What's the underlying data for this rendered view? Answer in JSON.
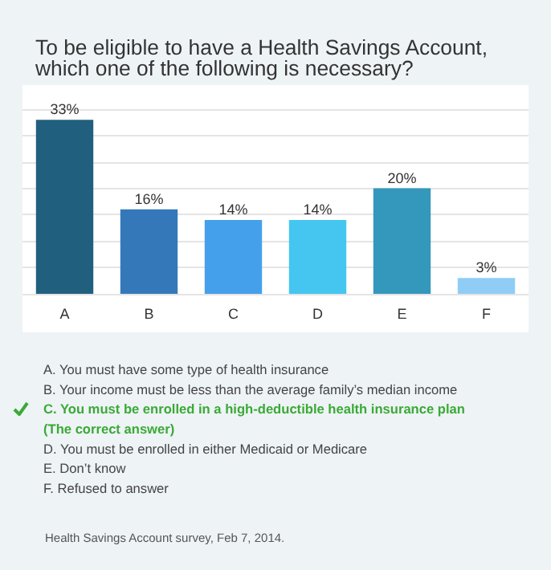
{
  "chart_data": {
    "type": "bar",
    "title": "To be eligible to have a Health Savings Account,\nwhich one of the following is necessary?",
    "categories": [
      "A",
      "B",
      "C",
      "D",
      "E",
      "F"
    ],
    "values": [
      33,
      16,
      14,
      14,
      20,
      3
    ],
    "value_labels": [
      "33%",
      "16%",
      "14%",
      "14%",
      "20%",
      "3%"
    ],
    "colors": [
      "#215f7e",
      "#3478b9",
      "#44a0eb",
      "#45c6f0",
      "#3398bb",
      "#8fcdf7"
    ],
    "ylim": [
      0,
      35
    ],
    "yticks": [
      {
        "value": 0,
        "label": null
      },
      {
        "value": 5,
        "label": null
      },
      {
        "value": 10,
        "label": null
      },
      {
        "value": 15,
        "label": null
      },
      {
        "value": 20,
        "label": null
      },
      {
        "value": 25,
        "label": null
      },
      {
        "value": 30,
        "label": null
      },
      {
        "value": 35,
        "label": null
      }
    ],
    "tick_labels": "x",
    "grid": "y",
    "annotations": [
      "A. You must have some type of health insurance",
      "B. Your income must be less than the average family’s median income",
      "C. You must be enrolled in a high-deductible health insurance plan\n(The correct answer)",
      "D. You must be enrolled in either Medicaid or Medicare",
      "E. Don’t know",
      "F. Refused to answer",
      "Health Savings Account survey, Feb 7, 2014."
    ]
  }
}
